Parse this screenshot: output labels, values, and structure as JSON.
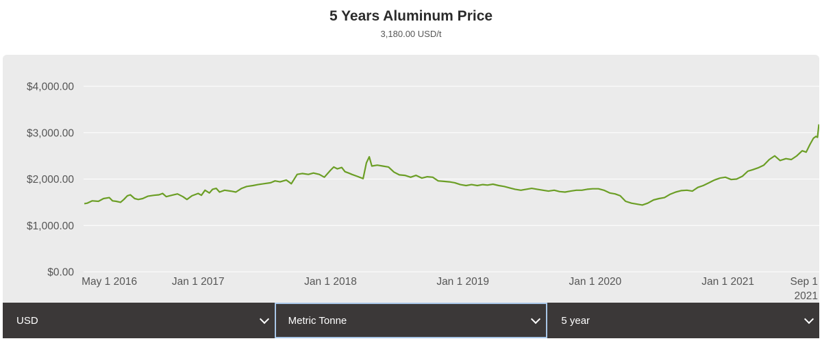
{
  "header": {
    "title": "5 Years Aluminum Price",
    "subtitle": "3,180.00 USD/t"
  },
  "controls": {
    "currency": "USD",
    "unit": "Metric Tonne",
    "period": "5 year"
  },
  "colors": {
    "line": "#6b9e25",
    "panel": "#ebebeb",
    "grid": "#ffffff",
    "control_bar": "#3b3838"
  },
  "chart_data": {
    "type": "line",
    "title": "5 Years Aluminum Price",
    "subtitle": "3,180.00 USD/t",
    "xlabel": "",
    "ylabel": "",
    "ylim": [
      0,
      4000
    ],
    "xlim": [
      "2016-02-20",
      "2021-09-10"
    ],
    "grid": true,
    "y_ticks": [
      {
        "value": 0,
        "label": "$0.00"
      },
      {
        "value": 1000,
        "label": "$1,000.00"
      },
      {
        "value": 2000,
        "label": "$2,000.00"
      },
      {
        "value": 3000,
        "label": "$3,000.00"
      },
      {
        "value": 4000,
        "label": "$4,000.00"
      }
    ],
    "x_ticks": [
      {
        "date": "2016-05-01",
        "label": "May 1 2016"
      },
      {
        "date": "2017-01-01",
        "label": "Jan 1 2017"
      },
      {
        "date": "2018-01-01",
        "label": "Jan 1 2018"
      },
      {
        "date": "2019-01-01",
        "label": "Jan 1 2019"
      },
      {
        "date": "2020-01-01",
        "label": "Jan 1 2020"
      },
      {
        "date": "2021-01-01",
        "label": "Jan 1 2021"
      },
      {
        "date": "2021-09-01",
        "label": "Sep 1 2021"
      }
    ],
    "series": [
      {
        "values": [
          [
            "2016-02-22",
            1470
          ],
          [
            "2016-03-01",
            1480
          ],
          [
            "2016-03-15",
            1530
          ],
          [
            "2016-04-01",
            1520
          ],
          [
            "2016-04-15",
            1580
          ],
          [
            "2016-05-01",
            1600
          ],
          [
            "2016-05-10",
            1530
          ],
          [
            "2016-05-20",
            1520
          ],
          [
            "2016-06-01",
            1500
          ],
          [
            "2016-06-10",
            1560
          ],
          [
            "2016-06-20",
            1640
          ],
          [
            "2016-06-28",
            1660
          ],
          [
            "2016-07-10",
            1580
          ],
          [
            "2016-07-20",
            1560
          ],
          [
            "2016-08-01",
            1580
          ],
          [
            "2016-08-15",
            1630
          ],
          [
            "2016-09-01",
            1650
          ],
          [
            "2016-09-15",
            1660
          ],
          [
            "2016-09-25",
            1690
          ],
          [
            "2016-10-05",
            1620
          ],
          [
            "2016-10-20",
            1650
          ],
          [
            "2016-11-05",
            1680
          ],
          [
            "2016-11-20",
            1620
          ],
          [
            "2016-12-01",
            1560
          ],
          [
            "2016-12-15",
            1640
          ],
          [
            "2017-01-01",
            1690
          ],
          [
            "2017-01-10",
            1650
          ],
          [
            "2017-01-20",
            1760
          ],
          [
            "2017-02-01",
            1700
          ],
          [
            "2017-02-10",
            1780
          ],
          [
            "2017-02-20",
            1800
          ],
          [
            "2017-03-01",
            1720
          ],
          [
            "2017-03-15",
            1760
          ],
          [
            "2017-04-01",
            1740
          ],
          [
            "2017-04-15",
            1720
          ],
          [
            "2017-05-01",
            1800
          ],
          [
            "2017-05-15",
            1840
          ],
          [
            "2017-06-01",
            1860
          ],
          [
            "2017-06-15",
            1880
          ],
          [
            "2017-07-01",
            1900
          ],
          [
            "2017-07-20",
            1920
          ],
          [
            "2017-08-01",
            1960
          ],
          [
            "2017-08-15",
            1940
          ],
          [
            "2017-09-01",
            1980
          ],
          [
            "2017-09-15",
            1900
          ],
          [
            "2017-10-01",
            2100
          ],
          [
            "2017-10-15",
            2120
          ],
          [
            "2017-11-01",
            2100
          ],
          [
            "2017-11-15",
            2130
          ],
          [
            "2017-12-01",
            2100
          ],
          [
            "2017-12-15",
            2040
          ],
          [
            "2018-01-01",
            2190
          ],
          [
            "2018-01-10",
            2260
          ],
          [
            "2018-01-20",
            2220
          ],
          [
            "2018-02-01",
            2250
          ],
          [
            "2018-02-10",
            2160
          ],
          [
            "2018-02-20",
            2130
          ],
          [
            "2018-03-01",
            2100
          ],
          [
            "2018-03-15",
            2060
          ],
          [
            "2018-04-01",
            2010
          ],
          [
            "2018-04-10",
            2350
          ],
          [
            "2018-04-18",
            2480
          ],
          [
            "2018-04-25",
            2280
          ],
          [
            "2018-05-10",
            2300
          ],
          [
            "2018-05-25",
            2280
          ],
          [
            "2018-06-10",
            2260
          ],
          [
            "2018-06-25",
            2150
          ],
          [
            "2018-07-10",
            2090
          ],
          [
            "2018-07-25",
            2080
          ],
          [
            "2018-08-10",
            2040
          ],
          [
            "2018-08-25",
            2080
          ],
          [
            "2018-09-10",
            2020
          ],
          [
            "2018-09-25",
            2050
          ],
          [
            "2018-10-10",
            2040
          ],
          [
            "2018-10-25",
            1960
          ],
          [
            "2018-11-10",
            1950
          ],
          [
            "2018-11-25",
            1940
          ],
          [
            "2018-12-10",
            1920
          ],
          [
            "2018-12-25",
            1880
          ],
          [
            "2019-01-10",
            1860
          ],
          [
            "2019-01-25",
            1880
          ],
          [
            "2019-02-10",
            1860
          ],
          [
            "2019-02-25",
            1880
          ],
          [
            "2019-03-10",
            1870
          ],
          [
            "2019-03-25",
            1890
          ],
          [
            "2019-04-10",
            1860
          ],
          [
            "2019-04-25",
            1840
          ],
          [
            "2019-05-10",
            1810
          ],
          [
            "2019-05-25",
            1780
          ],
          [
            "2019-06-10",
            1760
          ],
          [
            "2019-06-25",
            1780
          ],
          [
            "2019-07-10",
            1800
          ],
          [
            "2019-07-25",
            1780
          ],
          [
            "2019-08-10",
            1760
          ],
          [
            "2019-08-25",
            1740
          ],
          [
            "2019-09-10",
            1760
          ],
          [
            "2019-09-25",
            1730
          ],
          [
            "2019-10-10",
            1720
          ],
          [
            "2019-10-25",
            1740
          ],
          [
            "2019-11-10",
            1760
          ],
          [
            "2019-11-25",
            1760
          ],
          [
            "2019-12-10",
            1780
          ],
          [
            "2019-12-25",
            1790
          ],
          [
            "2020-01-10",
            1790
          ],
          [
            "2020-01-25",
            1760
          ],
          [
            "2020-02-10",
            1700
          ],
          [
            "2020-02-25",
            1680
          ],
          [
            "2020-03-10",
            1640
          ],
          [
            "2020-03-25",
            1520
          ],
          [
            "2020-04-10",
            1480
          ],
          [
            "2020-04-25",
            1460
          ],
          [
            "2020-05-10",
            1440
          ],
          [
            "2020-05-25",
            1480
          ],
          [
            "2020-06-10",
            1550
          ],
          [
            "2020-06-25",
            1580
          ],
          [
            "2020-07-10",
            1600
          ],
          [
            "2020-07-25",
            1670
          ],
          [
            "2020-08-10",
            1720
          ],
          [
            "2020-08-25",
            1750
          ],
          [
            "2020-09-10",
            1760
          ],
          [
            "2020-09-25",
            1740
          ],
          [
            "2020-10-10",
            1820
          ],
          [
            "2020-10-25",
            1860
          ],
          [
            "2020-11-10",
            1920
          ],
          [
            "2020-11-25",
            1980
          ],
          [
            "2020-12-10",
            2020
          ],
          [
            "2020-12-25",
            2040
          ],
          [
            "2021-01-10",
            1990
          ],
          [
            "2021-01-25",
            2000
          ],
          [
            "2021-02-10",
            2060
          ],
          [
            "2021-02-25",
            2170
          ],
          [
            "2021-03-10",
            2200
          ],
          [
            "2021-03-25",
            2240
          ],
          [
            "2021-04-10",
            2300
          ],
          [
            "2021-04-25",
            2420
          ],
          [
            "2021-05-10",
            2500
          ],
          [
            "2021-05-25",
            2400
          ],
          [
            "2021-06-10",
            2440
          ],
          [
            "2021-06-25",
            2420
          ],
          [
            "2021-07-10",
            2500
          ],
          [
            "2021-07-25",
            2610
          ],
          [
            "2021-08-05",
            2580
          ],
          [
            "2021-08-15",
            2740
          ],
          [
            "2021-08-25",
            2880
          ],
          [
            "2021-09-01",
            2920
          ],
          [
            "2021-09-05",
            2900
          ],
          [
            "2021-09-09",
            3180
          ]
        ]
      }
    ]
  }
}
